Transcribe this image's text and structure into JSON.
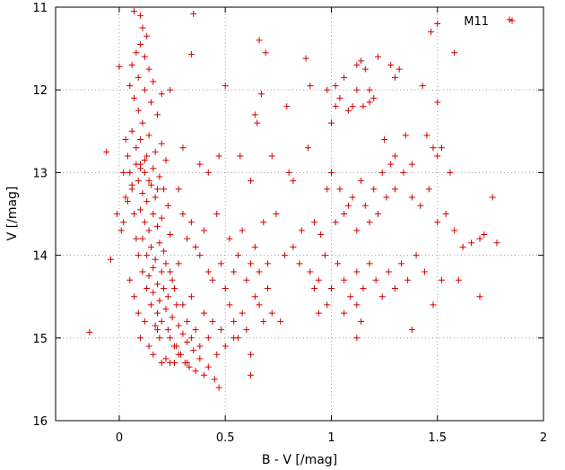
{
  "chart_data": {
    "type": "scatter",
    "xlabel": "B - V [/mag]",
    "ylabel": "V [/mag]",
    "xlim": [
      -0.3,
      2.0
    ],
    "ylim": [
      11,
      16
    ],
    "y_inverted": true,
    "grid": true,
    "legend_position": "top-right",
    "xticks": [
      "0",
      "0.5",
      "1",
      "1.5",
      "2"
    ],
    "yticks": [
      "11",
      "12",
      "13",
      "14",
      "15",
      "16"
    ],
    "marker": "plus",
    "color": "#d00000",
    "series": [
      {
        "name": "M11",
        "points": [
          [
            0.07,
            11.05
          ],
          [
            0.1,
            11.1
          ],
          [
            0.35,
            11.08
          ],
          [
            0.11,
            11.25
          ],
          [
            0.13,
            11.35
          ],
          [
            0.1,
            11.45
          ],
          [
            0.08,
            11.55
          ],
          [
            0.12,
            11.6
          ],
          [
            0.06,
            11.7
          ],
          [
            0.14,
            11.75
          ],
          [
            0.09,
            11.85
          ],
          [
            0.16,
            11.9
          ],
          [
            0.05,
            11.95
          ],
          [
            0.12,
            12.0
          ],
          [
            0.2,
            12.05
          ],
          [
            0.07,
            12.1
          ],
          [
            0.15,
            12.15
          ],
          [
            0.09,
            12.25
          ],
          [
            0.18,
            12.3
          ],
          [
            0.11,
            12.4
          ],
          [
            0.06,
            12.5
          ],
          [
            0.14,
            12.55
          ],
          [
            0.1,
            12.6
          ],
          [
            0.2,
            12.65
          ],
          [
            0.08,
            12.7
          ],
          [
            0.17,
            12.75
          ],
          [
            0.13,
            12.8
          ],
          [
            0.22,
            12.85
          ],
          [
            0.1,
            12.9
          ],
          [
            0.16,
            12.95
          ],
          [
            0.12,
            13.0
          ],
          [
            0.19,
            13.05
          ],
          [
            0.09,
            13.1
          ],
          [
            0.15,
            13.15
          ],
          [
            0.21,
            13.2
          ],
          [
            0.11,
            13.25
          ],
          [
            0.17,
            13.3
          ],
          [
            0.13,
            13.35
          ],
          [
            0.23,
            13.4
          ],
          [
            0.1,
            13.45
          ],
          [
            0.16,
            13.5
          ],
          [
            0.2,
            13.55
          ],
          [
            0.12,
            13.6
          ],
          [
            0.18,
            13.65
          ],
          [
            0.14,
            13.7
          ],
          [
            0.24,
            13.75
          ],
          [
            0.11,
            13.8
          ],
          [
            0.19,
            13.85
          ],
          [
            0.15,
            13.9
          ],
          [
            0.21,
            13.95
          ],
          [
            0.13,
            14.0
          ],
          [
            0.17,
            14.05
          ],
          [
            0.22,
            14.1
          ],
          [
            0.16,
            14.15
          ],
          [
            0.2,
            14.2
          ],
          [
            0.14,
            14.25
          ],
          [
            0.25,
            14.3
          ],
          [
            0.18,
            14.35
          ],
          [
            0.21,
            14.4
          ],
          [
            0.16,
            14.45
          ],
          [
            0.23,
            14.5
          ],
          [
            0.19,
            14.55
          ],
          [
            0.27,
            14.6
          ],
          [
            0.22,
            14.65
          ],
          [
            0.18,
            14.7
          ],
          [
            0.25,
            14.75
          ],
          [
            0.2,
            14.8
          ],
          [
            0.28,
            14.85
          ],
          [
            0.23,
            14.9
          ],
          [
            0.3,
            14.95
          ],
          [
            0.24,
            15.0
          ],
          [
            0.32,
            15.05
          ],
          [
            0.27,
            15.1
          ],
          [
            0.35,
            15.15
          ],
          [
            0.29,
            15.2
          ],
          [
            0.38,
            15.25
          ],
          [
            0.31,
            15.3
          ],
          [
            0.42,
            15.35
          ],
          [
            0.36,
            15.4
          ],
          [
            0.45,
            15.5
          ],
          [
            0.47,
            15.6
          ],
          [
            0.4,
            15.45
          ],
          [
            0.33,
            15.35
          ],
          [
            0.26,
            15.3
          ],
          [
            0.22,
            15.25
          ],
          [
            0.19,
            15.0
          ],
          [
            0.17,
            14.85
          ],
          [
            0.15,
            14.6
          ],
          [
            0.13,
            14.4
          ],
          [
            0.11,
            14.2
          ],
          [
            0.09,
            14.0
          ],
          [
            0.08,
            13.8
          ],
          [
            0.07,
            13.5
          ],
          [
            0.06,
            13.2
          ],
          [
            0.05,
            13.0
          ],
          [
            0.04,
            12.8
          ],
          [
            0.03,
            12.6
          ],
          [
            0.02,
            13.6
          ],
          [
            0.01,
            13.7
          ],
          [
            -0.01,
            13.5
          ],
          [
            0.03,
            13.3
          ],
          [
            0.05,
            14.3
          ],
          [
            0.07,
            14.5
          ],
          [
            0.09,
            14.7
          ],
          [
            0.1,
            15.0
          ],
          [
            0.12,
            14.8
          ],
          [
            0.14,
            15.1
          ],
          [
            0.16,
            15.2
          ],
          [
            0.18,
            14.9
          ],
          [
            0.2,
            15.3
          ],
          [
            0.24,
            14.2
          ],
          [
            0.26,
            14.4
          ],
          [
            0.28,
            14.1
          ],
          [
            0.3,
            14.6
          ],
          [
            0.32,
            14.8
          ],
          [
            0.34,
            14.5
          ],
          [
            0.36,
            14.9
          ],
          [
            0.38,
            15.1
          ],
          [
            0.4,
            14.7
          ],
          [
            0.42,
            15.0
          ],
          [
            0.44,
            14.8
          ],
          [
            0.46,
            15.2
          ],
          [
            0.48,
            14.9
          ],
          [
            0.5,
            15.1
          ],
          [
            0.52,
            14.6
          ],
          [
            0.54,
            14.8
          ],
          [
            0.56,
            15.0
          ],
          [
            0.58,
            14.7
          ],
          [
            0.6,
            14.9
          ],
          [
            0.62,
            15.2
          ],
          [
            0.64,
            14.5
          ],
          [
            0.66,
            14.6
          ],
          [
            0.68,
            14.8
          ],
          [
            0.7,
            14.4
          ],
          [
            0.72,
            14.7
          ],
          [
            0.76,
            14.8
          ],
          [
            0.28,
            13.2
          ],
          [
            0.3,
            13.5
          ],
          [
            0.32,
            13.8
          ],
          [
            0.34,
            13.6
          ],
          [
            0.36,
            13.9
          ],
          [
            0.38,
            14.0
          ],
          [
            0.4,
            13.7
          ],
          [
            0.42,
            14.2
          ],
          [
            0.44,
            14.3
          ],
          [
            0.46,
            13.5
          ],
          [
            0.48,
            14.1
          ],
          [
            0.5,
            14.4
          ],
          [
            0.52,
            13.8
          ],
          [
            0.54,
            14.2
          ],
          [
            0.56,
            14.0
          ],
          [
            0.58,
            13.7
          ],
          [
            0.6,
            14.3
          ],
          [
            0.62,
            14.1
          ],
          [
            0.64,
            13.9
          ],
          [
            0.66,
            14.2
          ],
          [
            0.68,
            13.6
          ],
          [
            0.7,
            14.1
          ],
          [
            0.74,
            13.5
          ],
          [
            0.78,
            14.0
          ],
          [
            0.82,
            13.9
          ],
          [
            0.86,
            13.7
          ],
          [
            0.24,
            12.0
          ],
          [
            0.3,
            12.7
          ],
          [
            0.34,
            11.57
          ],
          [
            0.38,
            12.9
          ],
          [
            0.42,
            13.0
          ],
          [
            0.47,
            12.8
          ],
          [
            0.5,
            11.95
          ],
          [
            0.57,
            12.8
          ],
          [
            0.62,
            13.1
          ],
          [
            0.64,
            12.3
          ],
          [
            0.65,
            12.4
          ],
          [
            0.66,
            11.4
          ],
          [
            0.67,
            12.05
          ],
          [
            0.69,
            11.55
          ],
          [
            0.72,
            12.8
          ],
          [
            0.79,
            12.2
          ],
          [
            0.8,
            13.0
          ],
          [
            0.82,
            13.1
          ],
          [
            0.88,
            11.62
          ],
          [
            0.89,
            12.7
          ],
          [
            0.9,
            11.95
          ],
          [
            0.92,
            13.6
          ],
          [
            0.95,
            13.75
          ],
          [
            0.98,
            13.2
          ],
          [
            1.0,
            13.0
          ],
          [
            1.02,
            13.6
          ],
          [
            1.04,
            13.2
          ],
          [
            1.06,
            13.5
          ],
          [
            1.08,
            13.4
          ],
          [
            1.1,
            13.3
          ],
          [
            1.12,
            13.7
          ],
          [
            1.14,
            13.1
          ],
          [
            1.16,
            13.4
          ],
          [
            1.18,
            13.6
          ],
          [
            1.2,
            13.2
          ],
          [
            1.22,
            13.5
          ],
          [
            1.24,
            13.0
          ],
          [
            1.26,
            13.3
          ],
          [
            1.28,
            12.9
          ],
          [
            1.3,
            13.2
          ],
          [
            1.34,
            13.0
          ],
          [
            1.38,
            13.3
          ],
          [
            1.42,
            13.4
          ],
          [
            1.46,
            13.2
          ],
          [
            1.5,
            13.6
          ],
          [
            1.54,
            13.5
          ],
          [
            1.58,
            13.7
          ],
          [
            1.62,
            13.9
          ],
          [
            1.66,
            13.85
          ],
          [
            1.7,
            13.8
          ],
          [
            1.72,
            13.75
          ],
          [
            1.76,
            13.3
          ],
          [
            1.78,
            13.85
          ],
          [
            1.56,
            13.0
          ],
          [
            1.52,
            12.7
          ],
          [
            1.5,
            12.8
          ],
          [
            1.48,
            12.7
          ],
          [
            1.45,
            12.55
          ],
          [
            1.43,
            11.95
          ],
          [
            1.47,
            11.3
          ],
          [
            1.5,
            11.2
          ],
          [
            1.58,
            11.55
          ],
          [
            1.84,
            11.15
          ],
          [
            1.5,
            12.15
          ],
          [
            1.3,
            11.85
          ],
          [
            1.32,
            11.75
          ],
          [
            1.28,
            11.7
          ],
          [
            1.12,
            11.7
          ],
          [
            1.14,
            11.65
          ],
          [
            1.16,
            11.75
          ],
          [
            1.18,
            12.0
          ],
          [
            1.2,
            12.1
          ],
          [
            1.22,
            11.6
          ],
          [
            1.1,
            12.2
          ],
          [
            1.08,
            12.25
          ],
          [
            1.06,
            11.85
          ],
          [
            1.04,
            12.1
          ],
          [
            1.0,
            12.4
          ],
          [
            1.02,
            11.95
          ],
          [
            0.98,
            12.0
          ],
          [
            1.02,
            12.2
          ],
          [
            1.12,
            12.0
          ],
          [
            1.15,
            12.2
          ],
          [
            1.18,
            12.15
          ],
          [
            1.25,
            12.6
          ],
          [
            1.3,
            12.8
          ],
          [
            1.35,
            12.55
          ],
          [
            1.38,
            12.9
          ],
          [
            0.85,
            14.1
          ],
          [
            0.9,
            14.2
          ],
          [
            0.94,
            14.3
          ],
          [
            0.97,
            14.0
          ],
          [
            1.0,
            14.4
          ],
          [
            1.03,
            14.1
          ],
          [
            1.06,
            14.3
          ],
          [
            1.09,
            14.5
          ],
          [
            1.12,
            14.2
          ],
          [
            1.15,
            14.4
          ],
          [
            1.18,
            14.1
          ],
          [
            1.21,
            14.3
          ],
          [
            1.24,
            14.5
          ],
          [
            1.27,
            14.2
          ],
          [
            1.3,
            14.4
          ],
          [
            1.33,
            14.1
          ],
          [
            1.36,
            14.3
          ],
          [
            1.4,
            14.0
          ],
          [
            1.44,
            14.2
          ],
          [
            1.48,
            14.6
          ],
          [
            1.52,
            14.3
          ],
          [
            1.6,
            14.3
          ],
          [
            1.7,
            14.5
          ],
          [
            1.38,
            14.9
          ],
          [
            1.12,
            14.6
          ],
          [
            1.14,
            14.8
          ],
          [
            1.06,
            14.7
          ],
          [
            0.98,
            14.6
          ],
          [
            0.94,
            14.7
          ],
          [
            0.92,
            14.4
          ],
          [
            1.12,
            15.0
          ],
          [
            0.54,
            15.0
          ],
          [
            0.62,
            15.45
          ],
          [
            0.24,
            15.3
          ],
          [
            0.26,
            15.1
          ],
          [
            0.28,
            15.2
          ],
          [
            0.32,
            15.3
          ],
          [
            0.34,
            15.0
          ],
          [
            -0.14,
            14.93
          ],
          [
            -0.04,
            14.05
          ],
          [
            -0.06,
            12.75
          ],
          [
            0.0,
            11.72
          ],
          [
            0.02,
            13.0
          ],
          [
            0.04,
            13.35
          ],
          [
            0.06,
            13.15
          ],
          [
            0.08,
            12.9
          ],
          [
            0.1,
            12.95
          ],
          [
            0.12,
            12.85
          ],
          [
            0.14,
            13.1
          ],
          [
            0.18,
            13.2
          ]
        ]
      }
    ]
  }
}
